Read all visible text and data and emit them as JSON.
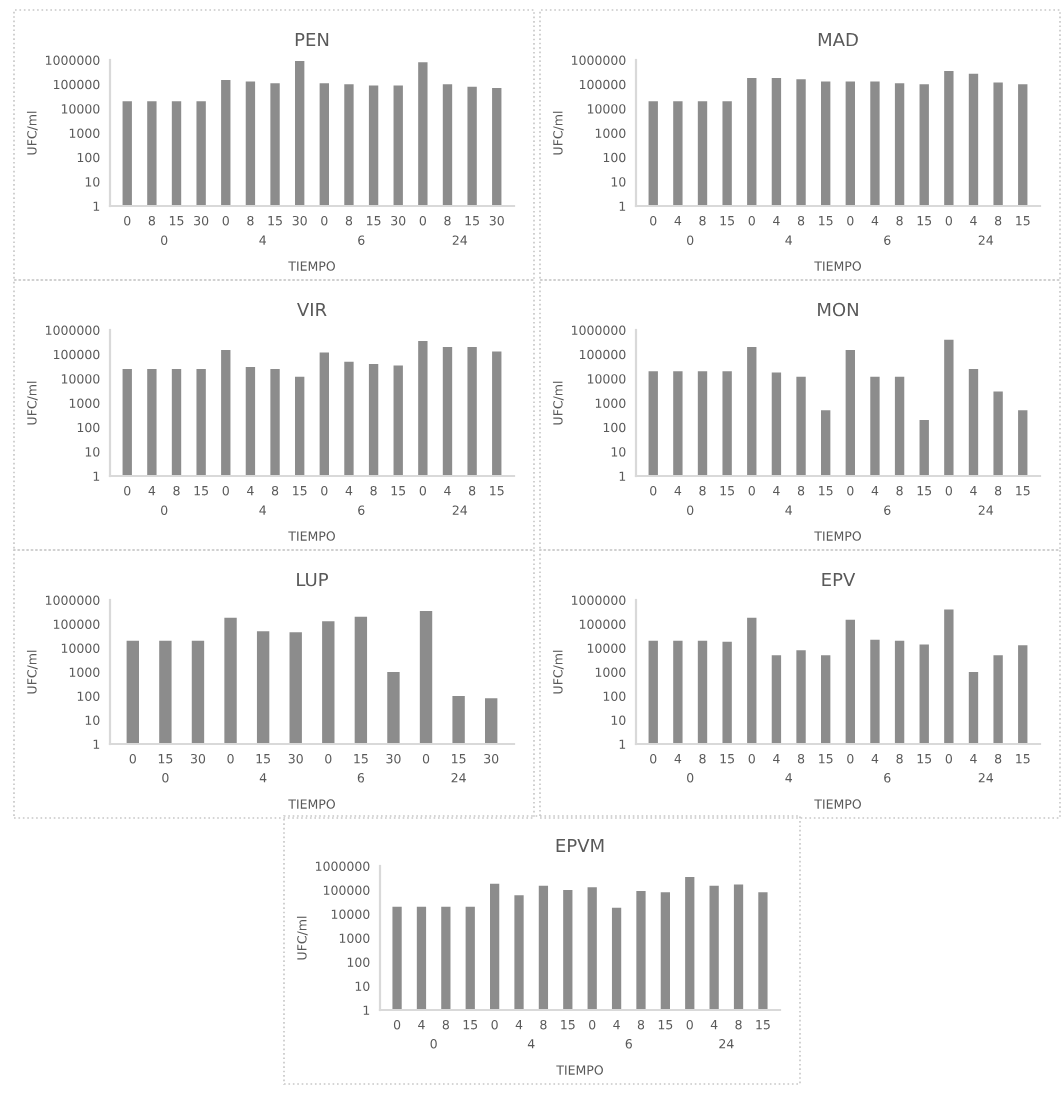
{
  "chart_data": [
    {
      "type": "bar",
      "title": "PEN",
      "xlabel": "TIEMPO",
      "ylabel": "UFC/ml",
      "log": "y",
      "color": "#8c8c8c",
      "ylim": [
        1,
        1000000
      ],
      "yticks": [
        1,
        10,
        100,
        1000,
        10000,
        100000,
        1000000
      ],
      "categories": [
        "0",
        "8",
        "15",
        "30",
        "0",
        "8",
        "15",
        "30",
        "0",
        "8",
        "15",
        "30",
        "0",
        "8",
        "15",
        "30"
      ],
      "values": [
        20000,
        20000,
        20000,
        20000,
        150000,
        130000,
        110000,
        900000,
        110000,
        100000,
        90000,
        90000,
        800000,
        100000,
        80000,
        70000
      ],
      "annotations": [
        "0",
        "4",
        "6",
        "24"
      ]
    },
    {
      "type": "bar",
      "title": "MAD",
      "xlabel": "TIEMPO",
      "ylabel": "UFC/ml",
      "log": "y",
      "color": "#8c8c8c",
      "ylim": [
        1,
        1000000
      ],
      "yticks": [
        1,
        10,
        100,
        1000,
        10000,
        100000,
        1000000
      ],
      "categories": [
        "0",
        "4",
        "8",
        "15",
        "0",
        "4",
        "8",
        "15",
        "0",
        "4",
        "8",
        "15",
        "0",
        "4",
        "8",
        "15"
      ],
      "values": [
        20000,
        20000,
        20000,
        20000,
        180000,
        180000,
        160000,
        130000,
        130000,
        130000,
        110000,
        100000,
        350000,
        270000,
        120000,
        100000
      ],
      "annotations": [
        "0",
        "4",
        "6",
        "24"
      ]
    },
    {
      "type": "bar",
      "title": "VIR",
      "xlabel": "TIEMPO",
      "ylabel": "UFC/ml",
      "log": "y",
      "color": "#8c8c8c",
      "ylim": [
        1,
        1000000
      ],
      "yticks": [
        1,
        10,
        100,
        1000,
        10000,
        100000,
        1000000
      ],
      "categories": [
        "0",
        "4",
        "8",
        "15",
        "0",
        "4",
        "8",
        "15",
        "0",
        "4",
        "8",
        "15",
        "0",
        "4",
        "8",
        "15"
      ],
      "values": [
        25000,
        25000,
        25000,
        25000,
        150000,
        30000,
        25000,
        12000,
        120000,
        50000,
        40000,
        35000,
        350000,
        200000,
        200000,
        130000
      ],
      "annotations": [
        "0",
        "4",
        "6",
        "24"
      ]
    },
    {
      "type": "bar",
      "title": "MON",
      "xlabel": "TIEMPO",
      "ylabel": "UFC/ml",
      "log": "y",
      "color": "#8c8c8c",
      "ylim": [
        1,
        1000000
      ],
      "yticks": [
        1,
        10,
        100,
        1000,
        10000,
        100000,
        1000000
      ],
      "categories": [
        "0",
        "4",
        "8",
        "15",
        "0",
        "4",
        "8",
        "15",
        "0",
        "4",
        "8",
        "15",
        "0",
        "4",
        "8",
        "15"
      ],
      "values": [
        20000,
        20000,
        20000,
        20000,
        200000,
        18000,
        12000,
        500,
        150000,
        12000,
        12000,
        200,
        400000,
        25000,
        3000,
        500
      ],
      "annotations": [
        "0",
        "4",
        "6",
        "24"
      ]
    },
    {
      "type": "bar",
      "title": "LUP",
      "xlabel": "TIEMPO",
      "ylabel": "UFC/ml",
      "log": "y",
      "color": "#8c8c8c",
      "ylim": [
        1,
        1000000
      ],
      "yticks": [
        1,
        10,
        100,
        1000,
        10000,
        100000,
        1000000
      ],
      "categories": [
        "0",
        "15",
        "30",
        "0",
        "15",
        "30",
        "0",
        "15",
        "30",
        "0",
        "15",
        "30"
      ],
      "values": [
        20000,
        20000,
        20000,
        180000,
        50000,
        45000,
        130000,
        200000,
        1000,
        350000,
        100,
        80
      ],
      "annotations": [
        "0",
        "4",
        "6",
        "24"
      ]
    },
    {
      "type": "bar",
      "title": "EPV",
      "xlabel": "TIEMPO",
      "ylabel": "UFC/ml",
      "log": "y",
      "color": "#8c8c8c",
      "ylim": [
        1,
        1000000
      ],
      "yticks": [
        1,
        10,
        100,
        1000,
        10000,
        100000,
        1000000
      ],
      "categories": [
        "0",
        "4",
        "8",
        "15",
        "0",
        "4",
        "8",
        "15",
        "0",
        "4",
        "8",
        "15",
        "0",
        "4",
        "8",
        "15"
      ],
      "values": [
        20000,
        20000,
        20000,
        18000,
        180000,
        5000,
        8000,
        5000,
        150000,
        22000,
        20000,
        14000,
        400000,
        1000,
        5000,
        13000
      ],
      "annotations": [
        "0",
        "4",
        "6",
        "24"
      ]
    },
    {
      "type": "bar",
      "title": "EPVM",
      "xlabel": "TIEMPO",
      "ylabel": "UFC/ml",
      "log": "y",
      "color": "#8c8c8c",
      "ylim": [
        1,
        1000000
      ],
      "yticks": [
        1,
        10,
        100,
        1000,
        10000,
        100000,
        1000000
      ],
      "categories": [
        "0",
        "4",
        "8",
        "15",
        "0",
        "4",
        "8",
        "15",
        "0",
        "4",
        "8",
        "15",
        "0",
        "4",
        "8",
        "15"
      ],
      "values": [
        20000,
        20000,
        20000,
        20000,
        180000,
        60000,
        150000,
        100000,
        130000,
        18000,
        90000,
        80000,
        350000,
        150000,
        170000,
        80000
      ],
      "annotations": [
        "0",
        "4",
        "6",
        "24"
      ]
    }
  ]
}
